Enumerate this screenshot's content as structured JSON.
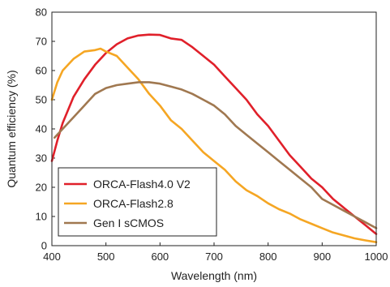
{
  "chart_data": {
    "type": "line",
    "title": "",
    "xlabel": "Wavelength (nm)",
    "ylabel": "Quantum efficiency (%)",
    "xlim": [
      400,
      1000
    ],
    "ylim": [
      0,
      80
    ],
    "x_ticks": [
      "400",
      "500",
      "600",
      "700",
      "800",
      "900",
      "1000"
    ],
    "y_ticks": [
      "0",
      "10",
      "20",
      "30",
      "40",
      "50",
      "60",
      "70",
      "80"
    ],
    "grid": false,
    "legend_position": "bottom-left",
    "series": [
      {
        "name": "ORCA-Flash4.0 V2",
        "color": "#e0202a",
        "points": [
          [
            400,
            29
          ],
          [
            410,
            36
          ],
          [
            420,
            42
          ],
          [
            440,
            51
          ],
          [
            460,
            57
          ],
          [
            480,
            62
          ],
          [
            500,
            66
          ],
          [
            520,
            69
          ],
          [
            540,
            71
          ],
          [
            560,
            72
          ],
          [
            580,
            72.3
          ],
          [
            600,
            72.2
          ],
          [
            620,
            71
          ],
          [
            640,
            70.5
          ],
          [
            660,
            68
          ],
          [
            680,
            65
          ],
          [
            700,
            62
          ],
          [
            720,
            58
          ],
          [
            740,
            54
          ],
          [
            760,
            50
          ],
          [
            780,
            45
          ],
          [
            800,
            41
          ],
          [
            820,
            36
          ],
          [
            840,
            31
          ],
          [
            860,
            27
          ],
          [
            880,
            23
          ],
          [
            900,
            20
          ],
          [
            920,
            16
          ],
          [
            940,
            13
          ],
          [
            960,
            10
          ],
          [
            980,
            7
          ],
          [
            1000,
            4
          ]
        ]
      },
      {
        "name": "ORCA-Flash2.8",
        "color": "#f5a623",
        "points": [
          [
            400,
            50
          ],
          [
            410,
            56
          ],
          [
            420,
            60
          ],
          [
            440,
            64
          ],
          [
            460,
            66.5
          ],
          [
            480,
            67
          ],
          [
            490,
            67.5
          ],
          [
            500,
            66.5
          ],
          [
            520,
            65
          ],
          [
            540,
            61
          ],
          [
            560,
            57
          ],
          [
            580,
            52
          ],
          [
            600,
            48
          ],
          [
            620,
            43
          ],
          [
            640,
            40
          ],
          [
            660,
            36
          ],
          [
            680,
            32
          ],
          [
            700,
            29
          ],
          [
            720,
            26
          ],
          [
            740,
            22
          ],
          [
            760,
            19
          ],
          [
            780,
            17
          ],
          [
            800,
            14.5
          ],
          [
            820,
            12.5
          ],
          [
            840,
            11
          ],
          [
            860,
            9
          ],
          [
            880,
            7.5
          ],
          [
            900,
            6
          ],
          [
            920,
            4.5
          ],
          [
            940,
            3.5
          ],
          [
            960,
            2.5
          ],
          [
            980,
            1.8
          ],
          [
            1000,
            1.2
          ]
        ]
      },
      {
        "name": "Gen I sCMOS",
        "color": "#a07850",
        "points": [
          [
            405,
            37
          ],
          [
            420,
            40
          ],
          [
            440,
            44
          ],
          [
            460,
            48
          ],
          [
            480,
            52
          ],
          [
            500,
            54
          ],
          [
            520,
            55
          ],
          [
            540,
            55.5
          ],
          [
            560,
            56
          ],
          [
            580,
            56
          ],
          [
            600,
            55.5
          ],
          [
            620,
            54.5
          ],
          [
            640,
            53.5
          ],
          [
            660,
            52
          ],
          [
            680,
            50
          ],
          [
            700,
            48
          ],
          [
            720,
            45
          ],
          [
            740,
            41
          ],
          [
            760,
            38
          ],
          [
            780,
            35
          ],
          [
            800,
            32
          ],
          [
            820,
            29
          ],
          [
            840,
            26
          ],
          [
            860,
            23
          ],
          [
            880,
            20
          ],
          [
            900,
            16
          ],
          [
            920,
            14
          ],
          [
            940,
            12
          ],
          [
            960,
            10
          ],
          [
            980,
            8
          ],
          [
            1000,
            6
          ]
        ]
      }
    ]
  }
}
